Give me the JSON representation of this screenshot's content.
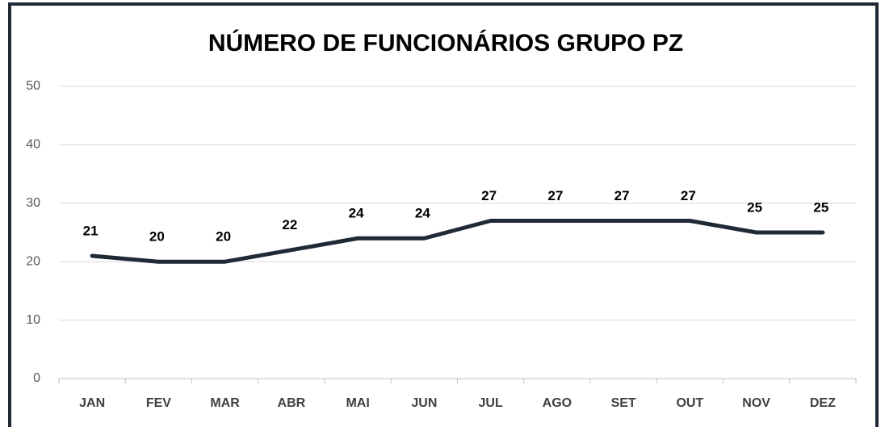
{
  "chart_data": {
    "type": "line",
    "title": "NÚMERO DE FUNCIONÁRIOS GRUPO PZ",
    "categories": [
      "JAN",
      "FEV",
      "MAR",
      "ABR",
      "MAI",
      "JUN",
      "JUL",
      "AGO",
      "SET",
      "OUT",
      "NOV",
      "DEZ"
    ],
    "values": [
      21,
      20,
      20,
      22,
      24,
      24,
      27,
      27,
      27,
      27,
      25,
      25
    ],
    "color": "#1f2a36",
    "ylim": [
      0,
      50
    ],
    "yticks": [
      0,
      10,
      20,
      30,
      40,
      50
    ],
    "grid": true
  }
}
